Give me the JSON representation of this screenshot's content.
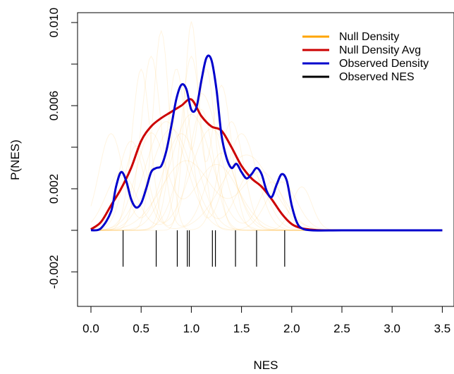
{
  "chart_data": {
    "type": "line",
    "xlabel": "NES",
    "ylabel": "P(NES)",
    "xlim": [
      -0.15,
      3.5
    ],
    "ylim": [
      -0.0028,
      0.0102
    ],
    "x_ticks": [
      "0.0",
      "0.5",
      "1.0",
      "1.5",
      "2.0",
      "2.5",
      "3.0",
      "3.5"
    ],
    "x_tick_values": [
      0,
      0.5,
      1.0,
      1.5,
      2.0,
      2.5,
      3.0,
      3.5
    ],
    "y_ticks": [
      "-0.002",
      "0.002",
      "0.006",
      "0.010"
    ],
    "y_tick_values": [
      -0.002,
      0.002,
      0.006,
      0.01
    ],
    "grid": false,
    "legend_position": "top-right",
    "legend": [
      {
        "label": "Null Density",
        "color": "#ffa500"
      },
      {
        "label": "Null Density Avg",
        "color": "#cc0000"
      },
      {
        "label": "Observed Density",
        "color": "#0000cc"
      },
      {
        "label": "Observed NES",
        "color": "#000000"
      }
    ],
    "series": [
      {
        "name": "Null Density Avg",
        "color": "#cc0000",
        "x": [
          0.0,
          0.1,
          0.2,
          0.3,
          0.4,
          0.5,
          0.6,
          0.7,
          0.8,
          0.9,
          1.0,
          1.1,
          1.2,
          1.3,
          1.4,
          1.5,
          1.6,
          1.7,
          1.8,
          1.9,
          2.0,
          2.1,
          2.2,
          2.3,
          2.4,
          2.5,
          3.0,
          3.5
        ],
        "y": [
          5e-05,
          0.0004,
          0.0012,
          0.002,
          0.003,
          0.0043,
          0.005,
          0.0054,
          0.0057,
          0.006,
          0.0063,
          0.0055,
          0.005,
          0.0048,
          0.004,
          0.0031,
          0.0025,
          0.0021,
          0.0015,
          0.0008,
          0.0003,
          0.0001,
          3e-05,
          0.0,
          0.0,
          0.0,
          0.0,
          0.0
        ]
      },
      {
        "name": "Observed Density",
        "color": "#0000cc",
        "x": [
          0.0,
          0.1,
          0.2,
          0.25,
          0.3,
          0.35,
          0.4,
          0.45,
          0.5,
          0.55,
          0.6,
          0.65,
          0.7,
          0.75,
          0.8,
          0.85,
          0.9,
          0.95,
          1.0,
          1.05,
          1.1,
          1.15,
          1.2,
          1.25,
          1.3,
          1.35,
          1.4,
          1.45,
          1.5,
          1.55,
          1.6,
          1.65,
          1.7,
          1.75,
          1.8,
          1.85,
          1.9,
          1.95,
          2.0,
          2.05,
          2.1,
          2.2,
          2.5,
          3.0,
          3.5
        ],
        "y": [
          0.0,
          0.0001,
          0.0009,
          0.0021,
          0.0028,
          0.0024,
          0.0015,
          0.0011,
          0.0013,
          0.002,
          0.0028,
          0.003,
          0.0031,
          0.0038,
          0.005,
          0.0063,
          0.007,
          0.0068,
          0.0058,
          0.0059,
          0.0072,
          0.0083,
          0.0082,
          0.0068,
          0.0046,
          0.0035,
          0.003,
          0.0032,
          0.0028,
          0.0025,
          0.0027,
          0.003,
          0.0027,
          0.0019,
          0.0016,
          0.0022,
          0.0027,
          0.0024,
          0.0012,
          0.0004,
          0.0001,
          0.0,
          0.0,
          0.0,
          0.0
        ]
      }
    ],
    "observed_nes": [
      0.32,
      0.65,
      0.86,
      0.96,
      0.98,
      1.21,
      1.24,
      1.44,
      1.65,
      1.93
    ],
    "null_densities": [
      {
        "mu": [
          0.2,
          0.9
        ],
        "sd": [
          0.12,
          0.18
        ],
        "w": [
          0.4,
          0.6
        ]
      },
      {
        "mu": [
          0.6,
          1.3
        ],
        "sd": [
          0.1,
          0.15
        ],
        "w": [
          0.6,
          0.4
        ]
      },
      {
        "mu": [
          0.8,
          1.6
        ],
        "sd": [
          0.2,
          0.15
        ],
        "w": [
          0.7,
          0.3
        ]
      },
      {
        "mu": [
          0.5,
          1.1
        ],
        "sd": [
          0.09,
          0.12
        ],
        "w": [
          0.5,
          0.5
        ]
      },
      {
        "mu": [
          1.0,
          1.8
        ],
        "sd": [
          0.2,
          0.12
        ],
        "w": [
          0.8,
          0.2
        ]
      },
      {
        "mu": [
          0.3,
          1.2
        ],
        "sd": [
          0.15,
          0.2
        ],
        "w": [
          0.3,
          0.7
        ]
      },
      {
        "mu": [
          0.9,
          1.5
        ],
        "sd": [
          0.1,
          0.15
        ],
        "w": [
          0.5,
          0.5
        ]
      },
      {
        "mu": [
          0.7,
          1.4
        ],
        "sd": [
          0.08,
          0.12
        ],
        "w": [
          0.55,
          0.45
        ]
      },
      {
        "mu": [
          1.1,
          2.1
        ],
        "sd": [
          0.18,
          0.1
        ],
        "w": [
          0.85,
          0.15
        ]
      },
      {
        "mu": [
          0.4,
          1.0
        ],
        "sd": [
          0.13,
          0.1
        ],
        "w": [
          0.4,
          0.6
        ]
      },
      {
        "mu": [
          0.95,
          1.7
        ],
        "sd": [
          0.25,
          0.2
        ],
        "w": [
          0.6,
          0.4
        ]
      },
      {
        "mu": [
          0.6,
          1.25
        ],
        "sd": [
          0.15,
          0.22
        ],
        "w": [
          0.5,
          0.5
        ]
      },
      {
        "mu": [
          1.0,
          1.3
        ],
        "sd": [
          0.07,
          0.1
        ],
        "w": [
          0.5,
          0.5
        ]
      },
      {
        "mu": [
          0.75,
          1.9
        ],
        "sd": [
          0.2,
          0.15
        ],
        "w": [
          0.75,
          0.25
        ]
      },
      {
        "mu": [
          0.45,
          1.55
        ],
        "sd": [
          0.12,
          0.25
        ],
        "w": [
          0.35,
          0.65
        ]
      },
      {
        "mu": [
          0.85,
          1.15
        ],
        "sd": [
          0.09,
          0.09
        ],
        "w": [
          0.5,
          0.5
        ]
      }
    ]
  }
}
